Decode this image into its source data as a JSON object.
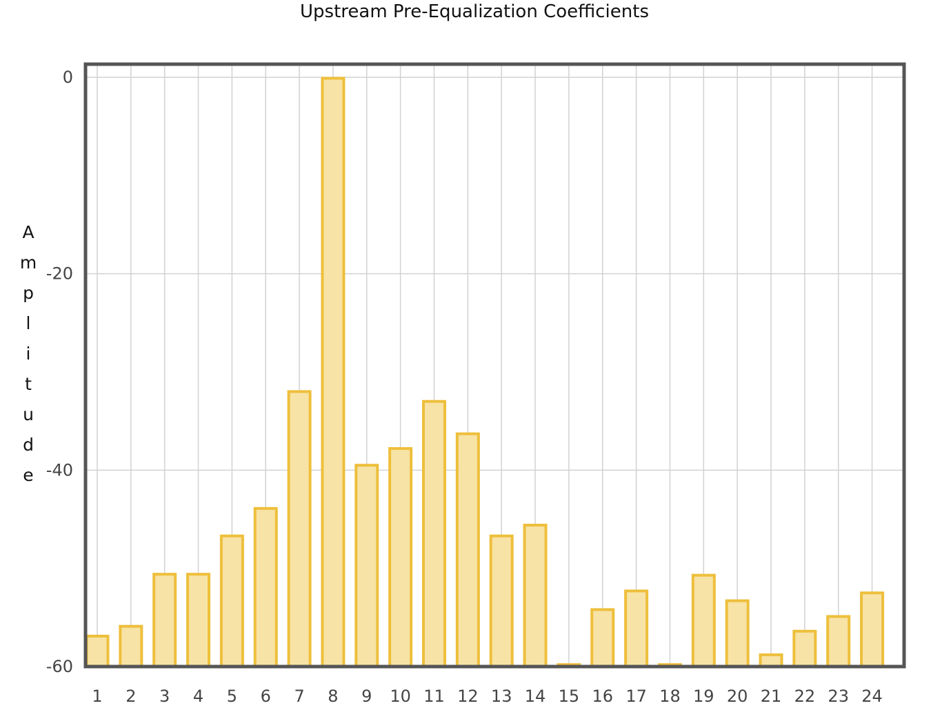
{
  "chart_data": {
    "type": "bar",
    "title": "Upstream Pre-Equalization Coefficients",
    "xlabel": "",
    "ylabel": "Amplitude",
    "categories": [
      "1",
      "2",
      "3",
      "4",
      "5",
      "6",
      "7",
      "8",
      "9",
      "10",
      "11",
      "12",
      "13",
      "14",
      "15",
      "16",
      "17",
      "18",
      "19",
      "20",
      "21",
      "22",
      "23",
      "24"
    ],
    "values": [
      -56.9,
      -55.9,
      -50.6,
      -50.6,
      -46.7,
      -43.9,
      -32.0,
      -0.1,
      -39.5,
      -37.8,
      -33.0,
      -36.3,
      -46.7,
      -45.6,
      -59.8,
      -54.2,
      -52.3,
      -59.8,
      -50.7,
      -53.3,
      -58.8,
      -56.4,
      -54.9,
      -52.5
    ],
    "ylim": [
      -60,
      0
    ],
    "yticks": [
      0,
      -20,
      -40,
      -60
    ],
    "grid": true,
    "colors": {
      "bar_fill": "#f8e3a6",
      "bar_stroke": "#eebf3c",
      "grid": "#d2d2d2",
      "frame": "#555555"
    }
  }
}
